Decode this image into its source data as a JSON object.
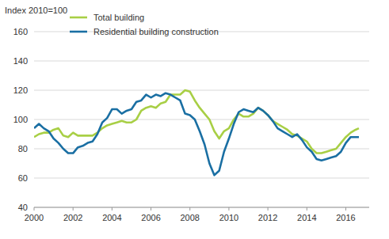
{
  "chart_data": {
    "type": "line",
    "title": "Index 2010=100",
    "x": [
      2000,
      2000.25,
      2000.5,
      2000.75,
      2001,
      2001.25,
      2001.5,
      2001.75,
      2002,
      2002.25,
      2002.5,
      2002.75,
      2003,
      2003.25,
      2003.5,
      2003.75,
      2004,
      2004.25,
      2004.5,
      2004.75,
      2005,
      2005.25,
      2005.5,
      2005.75,
      2006,
      2006.25,
      2006.5,
      2006.75,
      2007,
      2007.25,
      2007.5,
      2007.75,
      2008,
      2008.25,
      2008.5,
      2008.75,
      2009,
      2009.25,
      2009.5,
      2009.75,
      2010,
      2010.25,
      2010.5,
      2010.75,
      2011,
      2011.25,
      2011.5,
      2011.75,
      2012,
      2012.25,
      2012.5,
      2012.75,
      2013,
      2013.25,
      2013.5,
      2013.75,
      2014,
      2014.25,
      2014.5,
      2014.75,
      2015,
      2015.25,
      2015.5,
      2015.75,
      2016,
      2016.25,
      2016.5,
      2016.67
    ],
    "series": [
      {
        "name": "Total building",
        "color": "#a8cf45",
        "values": [
          88,
          90,
          91,
          91,
          93,
          94,
          89,
          88,
          91,
          89,
          89,
          89,
          89,
          91,
          94,
          96,
          97,
          98,
          99,
          98,
          98,
          100,
          106,
          108,
          109,
          108,
          111,
          112,
          117,
          117,
          117,
          120,
          119,
          113,
          108,
          104,
          100,
          92,
          87,
          92,
          94,
          100,
          104,
          102,
          102,
          104,
          108,
          106,
          103,
          99,
          97,
          95,
          93,
          90,
          89,
          87,
          85,
          80,
          77,
          77,
          78,
          79,
          80,
          84,
          88,
          91,
          93,
          94
        ]
      },
      {
        "name": "Residential building construction",
        "color": "#1a6fa3",
        "values": [
          94,
          97,
          94,
          92,
          87,
          84,
          80,
          77,
          77,
          81,
          82,
          84,
          85,
          90,
          98,
          101,
          107,
          107,
          104,
          106,
          107,
          112,
          113,
          117,
          115,
          117,
          116,
          118,
          117,
          115,
          113,
          104,
          103,
          100,
          92,
          83,
          70,
          62,
          65,
          78,
          87,
          97,
          105,
          107,
          106,
          105,
          108,
          106,
          103,
          99,
          94,
          92,
          90,
          88,
          90,
          86,
          81,
          78,
          73,
          72,
          73,
          74,
          75,
          78,
          84,
          88,
          88,
          88
        ]
      }
    ],
    "xlim": [
      2000,
      2017.2
    ],
    "xticks": [
      2000,
      2002,
      2004,
      2006,
      2008,
      2010,
      2012,
      2014,
      2016
    ],
    "ylim": [
      40,
      160
    ],
    "yticks": [
      40,
      60,
      80,
      100,
      120,
      140,
      160
    ],
    "grid": true,
    "legend": "upper left"
  }
}
